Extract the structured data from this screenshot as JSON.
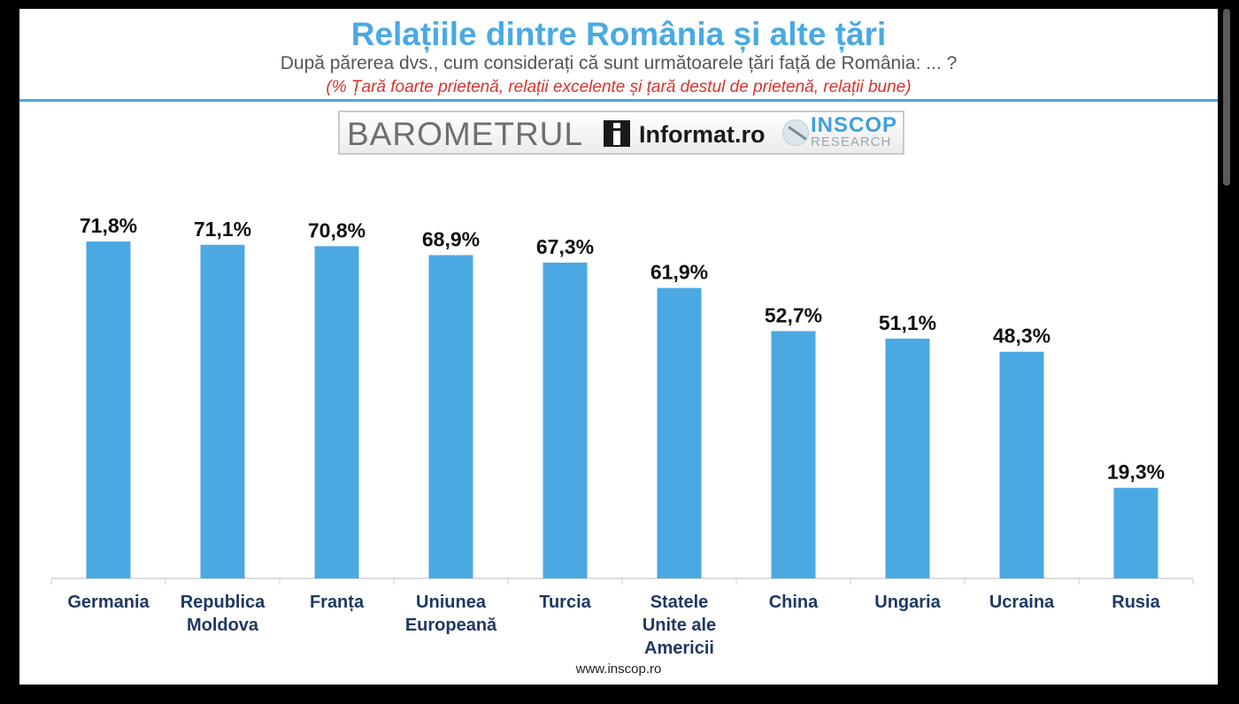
{
  "header": {
    "title": "Relațiile dintre România și alte țări",
    "subtitle": "După părerea dvs., cum considerați că sunt următoarele țări față de România: ... ?",
    "note": "(% Țară foarte prietenă, relații excelente și țară destul de prietenă, relații bune)"
  },
  "banner": {
    "barometrul": "BAROMETRUL",
    "informat": "Informat.ro",
    "inscop": "INSCOP",
    "research": "RESEARCH"
  },
  "footer": {
    "url": "www.inscop.ro"
  },
  "colors": {
    "bar": "#4aa9e3",
    "title": "#4aa9e3",
    "note": "#d9332b",
    "category": "#1f3864"
  },
  "chart_data": {
    "type": "bar",
    "categories": [
      "Germania",
      "Republica Moldova",
      "Franța",
      "Uniunea Europeană",
      "Turcia",
      "Statele Unite ale Americii",
      "China",
      "Ungaria",
      "Ucraina",
      "Rusia"
    ],
    "category_lines": [
      [
        "Germania"
      ],
      [
        "Republica",
        "Moldova"
      ],
      [
        "Franța"
      ],
      [
        "Uniunea",
        "Europeană"
      ],
      [
        "Turcia"
      ],
      [
        "Statele",
        "Unite ale",
        "Americii"
      ],
      [
        "China"
      ],
      [
        "Ungaria"
      ],
      [
        "Ucraina"
      ],
      [
        "Rusia"
      ]
    ],
    "values": [
      71.8,
      71.1,
      70.8,
      68.9,
      67.3,
      61.9,
      52.7,
      51.1,
      48.3,
      19.3
    ],
    "labels": [
      "71,8%",
      "71,1%",
      "70,8%",
      "68,9%",
      "67,3%",
      "61,9%",
      "52,7%",
      "51,1%",
      "48,3%",
      "19,3%"
    ],
    "ylim": [
      0,
      72
    ],
    "grid": false,
    "legend": "none"
  }
}
